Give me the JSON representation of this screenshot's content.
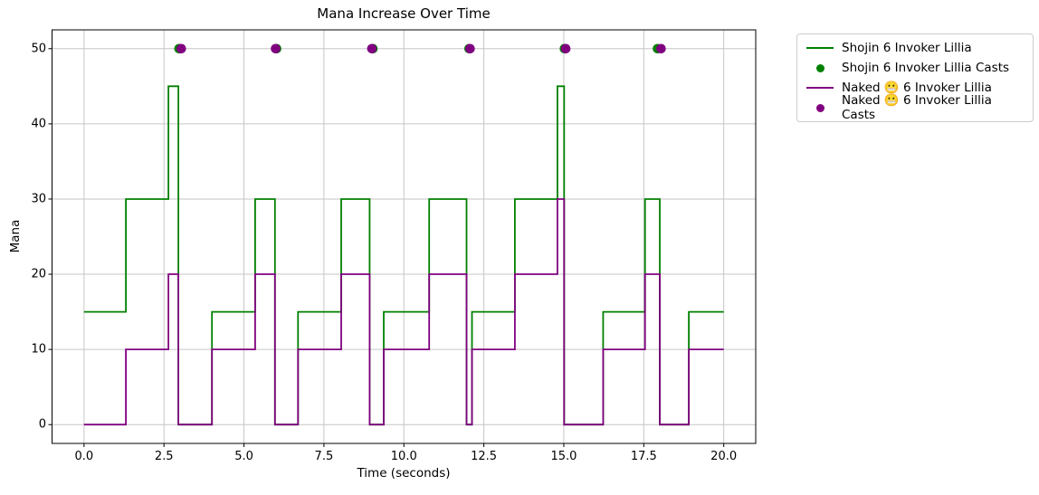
{
  "chart_data": {
    "type": "line",
    "subtype": "step-post",
    "title": "Mana Increase Over Time",
    "xlabel": "Time (seconds)",
    "ylabel": "Mana",
    "xlim": [
      -1,
      21
    ],
    "ylim": [
      -2.5,
      52.5
    ],
    "grid": true,
    "xticks": {
      "values": [
        0,
        2.5,
        5,
        7.5,
        10,
        12.5,
        15,
        17.5,
        20
      ],
      "labels": [
        "0.0",
        "2.5",
        "5.0",
        "7.5",
        "10.0",
        "12.5",
        "15.0",
        "17.5",
        "20.0"
      ]
    },
    "yticks": {
      "values": [
        0,
        10,
        20,
        30,
        40,
        50
      ],
      "labels": [
        "0",
        "10",
        "20",
        "30",
        "40",
        "50"
      ]
    },
    "x_end": 20,
    "series": [
      {
        "name": "Shojin 6 Invoker Lillia",
        "color": "#008000",
        "steps": [
          [
            0,
            15
          ],
          [
            1.31,
            30
          ],
          [
            2.64,
            45
          ],
          [
            2.95,
            0
          ],
          [
            4.0,
            15
          ],
          [
            5.35,
            30
          ],
          [
            5.97,
            0
          ],
          [
            6.69,
            15
          ],
          [
            8.04,
            30
          ],
          [
            8.93,
            0
          ],
          [
            9.37,
            15
          ],
          [
            10.79,
            30
          ],
          [
            11.96,
            0
          ],
          [
            12.13,
            15
          ],
          [
            13.47,
            30
          ],
          [
            14.8,
            45
          ],
          [
            15.01,
            0
          ],
          [
            16.23,
            15
          ],
          [
            17.54,
            30
          ],
          [
            18.0,
            0
          ],
          [
            18.91,
            15
          ]
        ]
      },
      {
        "name": "Naked 😬 6 Invoker Lillia",
        "color": "#800080",
        "steps": [
          [
            0,
            0
          ],
          [
            1.31,
            10
          ],
          [
            2.64,
            20
          ],
          [
            2.95,
            0
          ],
          [
            4.0,
            10
          ],
          [
            5.35,
            20
          ],
          [
            5.97,
            0
          ],
          [
            6.69,
            10
          ],
          [
            8.04,
            20
          ],
          [
            8.93,
            0
          ],
          [
            9.37,
            10
          ],
          [
            10.79,
            20
          ],
          [
            11.96,
            0
          ],
          [
            12.13,
            10
          ],
          [
            13.47,
            20
          ],
          [
            14.8,
            30
          ],
          [
            15.01,
            0
          ],
          [
            16.23,
            10
          ],
          [
            17.54,
            20
          ],
          [
            18.0,
            0
          ],
          [
            18.91,
            10
          ]
        ]
      }
    ],
    "cast_series": [
      {
        "name": "Shojin 6 Invoker Lillia Casts",
        "color": "#008000",
        "y": 50,
        "times": [
          2.97,
          6.02,
          9.03,
          12.04,
          15.02,
          17.93
        ]
      },
      {
        "name": "Naked 😬 6 Invoker Lillia Casts",
        "color": "#800080",
        "y": 50,
        "times": [
          3.04,
          5.99,
          9.0,
          12.07,
          15.06,
          18.04
        ]
      }
    ]
  },
  "legend": {
    "items": [
      {
        "label": "Shojin 6 Invoker Lillia",
        "marker": "line",
        "color": "#008000"
      },
      {
        "label": "Shojin 6 Invoker Lillia Casts",
        "marker": "dot",
        "color": "#008000"
      },
      {
        "label": "Naked 😬 6 Invoker Lillia",
        "marker": "line",
        "color": "#800080"
      },
      {
        "label": "Naked 😬 6 Invoker Lillia Casts",
        "marker": "dot",
        "color": "#800080"
      }
    ]
  },
  "colors": {
    "background": "#ffffff",
    "grid": "#c6c6c6",
    "spine": "#000000",
    "text": "#000000"
  }
}
